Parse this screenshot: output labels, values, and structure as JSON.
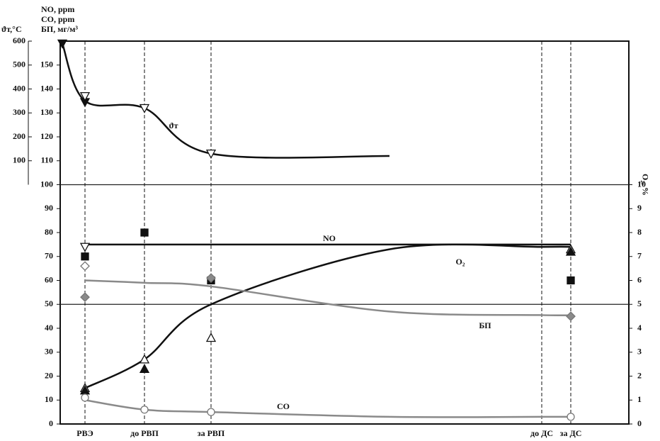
{
  "chart_data": {
    "type": "line",
    "y_axis_titles": [
      "NO, ppm",
      "CO, ppm",
      "БП, мг/м³"
    ],
    "y3_axis_title": "ϑт,°C",
    "y2_axis_title": "O₂, %",
    "categories": [
      null,
      "РВЭ",
      "до РВП",
      "за РВП",
      null,
      "до ДС",
      "за ДС"
    ],
    "ylim": [
      0,
      160
    ],
    "yticks": [
      0,
      10,
      20,
      30,
      40,
      50,
      60,
      70,
      80,
      90,
      100,
      110,
      120,
      130,
      140,
      150
    ],
    "y2lim": [
      0,
      16
    ],
    "y2ticks": [
      0,
      1,
      2,
      3,
      4,
      5,
      6,
      7,
      8,
      9,
      10
    ],
    "y3lim": [
      0,
      600
    ],
    "y3ticks": [
      100,
      200,
      300,
      400,
      500,
      600
    ],
    "grid_lines": [
      50,
      100
    ],
    "series": [
      {
        "name": "ϑт",
        "color": "#111111",
        "axis": "y3",
        "values": [
          590,
          350,
          320,
          130,
          120,
          null,
          null
        ],
        "markers": [
          {
            "shape": "triangle-down",
            "filled": true,
            "values": [
              590,
              345,
              null,
              null,
              null,
              null,
              null
            ]
          },
          {
            "shape": "triangle-down",
            "filled": false,
            "values": [
              null,
              370,
              320,
              130,
              null,
              null,
              null
            ]
          }
        ]
      },
      {
        "name": "NO",
        "color": "#111111",
        "axis": "y",
        "values": [
          null,
          75,
          75,
          75,
          75,
          75,
          75
        ],
        "markers": [
          {
            "shape": "triangle-down",
            "filled": false,
            "values": [
              null,
              74,
              null,
              null,
              null,
              null,
              null
            ]
          },
          {
            "shape": "square",
            "filled": true,
            "values": [
              null,
              70,
              80,
              60,
              null,
              null,
              60
            ]
          }
        ]
      },
      {
        "name": "O₂",
        "color": "#111111",
        "axis": "y2",
        "values": [
          null,
          1.5,
          2.7,
          5,
          7.3,
          7.4,
          7.4
        ],
        "markers": [
          {
            "shape": "triangle-up",
            "filled": false,
            "values": [
              null,
              1.5,
              2.7,
              3.6,
              null,
              null,
              7.3
            ]
          },
          {
            "shape": "triangle-up",
            "filled": true,
            "values": [
              null,
              1.4,
              2.3,
              null,
              null,
              null,
              7.2
            ]
          }
        ]
      },
      {
        "name": "БП",
        "color": "#8a8a8a",
        "axis": "y",
        "values": [
          null,
          60,
          59,
          57.5,
          47,
          45.5,
          45.5
        ],
        "markers": [
          {
            "shape": "diamond",
            "filled": true,
            "values": [
              null,
              53,
              null,
              61,
              null,
              null,
              45
            ]
          },
          {
            "shape": "diamond",
            "filled": false,
            "values": [
              null,
              66,
              null,
              null,
              null,
              null,
              null
            ]
          }
        ]
      },
      {
        "name": "CO",
        "color": "#8a8a8a",
        "axis": "y",
        "values": [
          null,
          10,
          6,
          5,
          3,
          3,
          3
        ],
        "markers": [
          {
            "shape": "circle",
            "filled": false,
            "values": [
              null,
              11,
              6,
              5,
              null,
              null,
              3
            ]
          }
        ]
      }
    ]
  }
}
